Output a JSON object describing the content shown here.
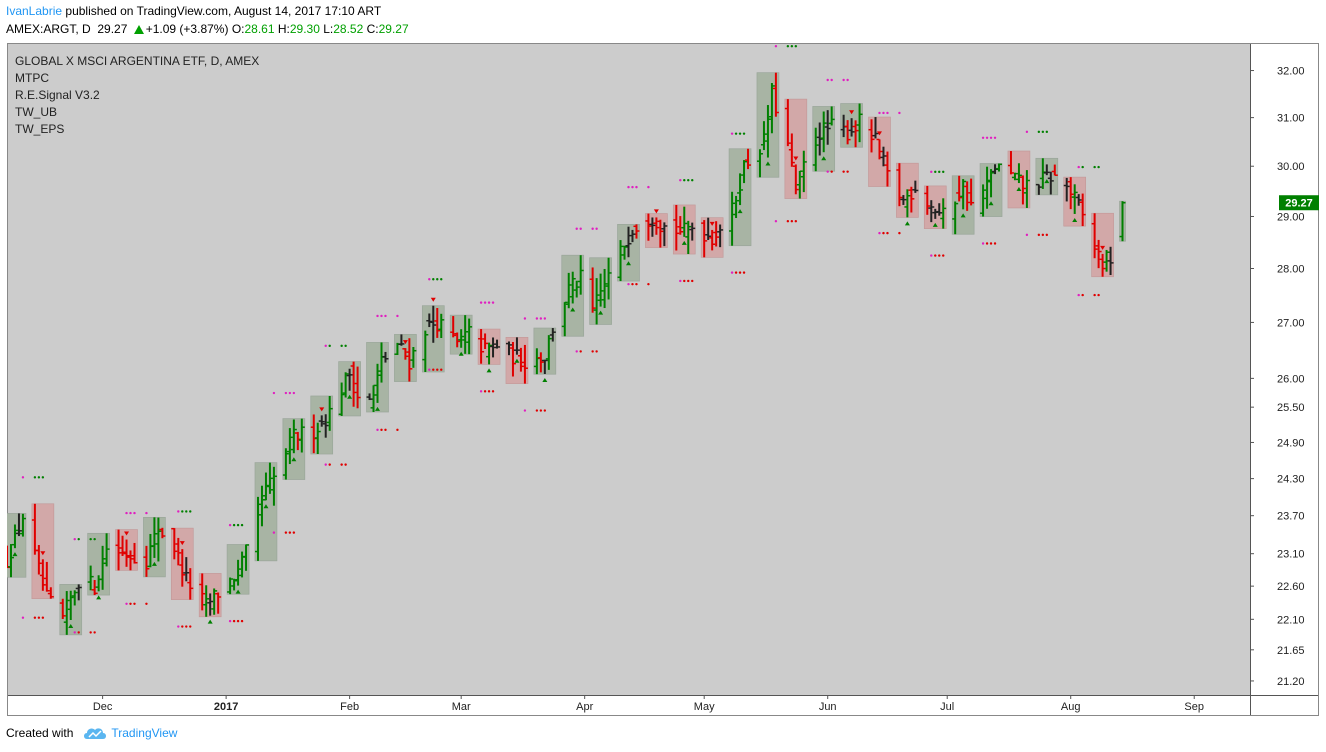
{
  "header": {
    "author": "IvanLabrie",
    "published_text": "published on TradingView.com, August 14, 2017 17:10 ART",
    "symbol": "AMEX:ARGT, D",
    "last": "29.27",
    "change": "+1.09 (+3.87%)",
    "o_label": "O:",
    "o_value": "28.61",
    "h_label": "H:",
    "h_value": "29.30",
    "l_label": "L:",
    "l_value": "28.52",
    "c_label": "C:",
    "c_value": "29.27"
  },
  "indicators": [
    "GLOBAL X MSCI ARGENTINA ETF, D, AMEX",
    "MTPC",
    "R.E.Signal V3.2",
    "TW_UB",
    "TW_EPS"
  ],
  "price_label": "29.27",
  "footer": {
    "created_with": "Created with",
    "brand": "TradingView",
    "logo_icon": "cloud-logo-icon"
  },
  "colors": {
    "up": "#008000",
    "down": "#e00000",
    "neutral": "#222222",
    "magenta": "#e020c0",
    "plot_bg": "#cccccc",
    "up_box": "#a8b4a4",
    "down_box": "#d2a8a8",
    "price_tag": "#008000"
  },
  "chart_data": {
    "type": "ohlc",
    "scale": "log",
    "ylim": [
      21.0,
      32.6
    ],
    "y_ticks": [
      "32.00",
      "31.00",
      "30.00",
      "29.00",
      "28.00",
      "27.00",
      "26.00",
      "25.50",
      "24.90",
      "24.30",
      "23.70",
      "23.10",
      "22.60",
      "22.10",
      "21.65",
      "21.20"
    ],
    "x_ticks": [
      {
        "label": "Dec",
        "date": "2016-12-01"
      },
      {
        "label": "2017",
        "date": "2017-01-01"
      },
      {
        "label": "Feb",
        "date": "2017-02-01"
      },
      {
        "label": "Mar",
        "date": "2017-03-01"
      },
      {
        "label": "Apr",
        "date": "2017-04-01"
      },
      {
        "label": "May",
        "date": "2017-05-01"
      },
      {
        "label": "Jun",
        "date": "2017-06-01"
      },
      {
        "label": "Jul",
        "date": "2017-07-01"
      },
      {
        "label": "Aug",
        "date": "2017-08-01"
      },
      {
        "label": "Sep",
        "date": "2017-09-01"
      }
    ],
    "x_range": [
      "2016-11-07",
      "2017-09-15"
    ],
    "price_path": [
      [
        "2016-11-07",
        23.0
      ],
      [
        "2016-11-11",
        23.7
      ],
      [
        "2016-11-17",
        22.4
      ],
      [
        "2016-11-21",
        22.1
      ],
      [
        "2016-11-25",
        22.7
      ],
      [
        "2016-11-29",
        22.6
      ],
      [
        "2016-12-02",
        23.2
      ],
      [
        "2016-12-07",
        23.1
      ],
      [
        "2016-12-12",
        23.0
      ],
      [
        "2016-12-15",
        23.5
      ],
      [
        "2016-12-19",
        23.2
      ],
      [
        "2016-12-22",
        22.7
      ],
      [
        "2016-12-27",
        22.3
      ],
      [
        "2016-12-30",
        22.5
      ],
      [
        "2017-01-04",
        22.8
      ],
      [
        "2017-01-06",
        23.1
      ],
      [
        "2017-01-10",
        24.0
      ],
      [
        "2017-01-13",
        24.3
      ],
      [
        "2017-01-18",
        25.0
      ],
      [
        "2017-01-23",
        25.1
      ],
      [
        "2017-01-27",
        25.4
      ],
      [
        "2017-02-01",
        26.1
      ],
      [
        "2017-02-03",
        25.7
      ],
      [
        "2017-02-06",
        25.6
      ],
      [
        "2017-02-09",
        26.3
      ],
      [
        "2017-02-13",
        26.6
      ],
      [
        "2017-02-16",
        26.3
      ],
      [
        "2017-02-20",
        26.9
      ],
      [
        "2017-02-23",
        27.0
      ],
      [
        "2017-02-28",
        26.6
      ],
      [
        "2017-03-03",
        26.8
      ],
      [
        "2017-03-07",
        26.5
      ],
      [
        "2017-03-10",
        26.6
      ],
      [
        "2017-03-14",
        26.4
      ],
      [
        "2017-03-17",
        26.3
      ],
      [
        "2017-03-22",
        26.4
      ],
      [
        "2017-03-24",
        26.9
      ],
      [
        "2017-03-28",
        27.6
      ],
      [
        "2017-03-31",
        27.8
      ],
      [
        "2017-04-03",
        27.2
      ],
      [
        "2017-04-06",
        27.7
      ],
      [
        "2017-04-10",
        28.3
      ],
      [
        "2017-04-13",
        28.8
      ],
      [
        "2017-04-18",
        29.0
      ],
      [
        "2017-04-21",
        28.8
      ],
      [
        "2017-04-26",
        28.7
      ],
      [
        "2017-04-28",
        28.8
      ],
      [
        "2017-05-03",
        28.6
      ],
      [
        "2017-05-05",
        28.8
      ],
      [
        "2017-05-08",
        29.1
      ],
      [
        "2017-05-11",
        30.0
      ],
      [
        "2017-05-16",
        30.5
      ],
      [
        "2017-05-18",
        31.5
      ],
      [
        "2017-05-22",
        30.4
      ],
      [
        "2017-05-24",
        29.5
      ],
      [
        "2017-05-26",
        30.0
      ],
      [
        "2017-05-30",
        30.7
      ],
      [
        "2017-06-02",
        30.8
      ],
      [
        "2017-06-06",
        30.7
      ],
      [
        "2017-06-09",
        30.9
      ],
      [
        "2017-06-13",
        30.5
      ],
      [
        "2017-06-16",
        29.8
      ],
      [
        "2017-06-20",
        29.3
      ],
      [
        "2017-06-23",
        29.6
      ],
      [
        "2017-06-27",
        29.2
      ],
      [
        "2017-06-30",
        29.0
      ],
      [
        "2017-07-05",
        29.6
      ],
      [
        "2017-07-07",
        29.2
      ],
      [
        "2017-07-11",
        29.6
      ],
      [
        "2017-07-13",
        30.0
      ],
      [
        "2017-07-17",
        29.8
      ],
      [
        "2017-07-20",
        29.6
      ],
      [
        "2017-07-24",
        29.7
      ],
      [
        "2017-07-27",
        29.8
      ],
      [
        "2017-07-31",
        29.6
      ],
      [
        "2017-08-03",
        29.2
      ],
      [
        "2017-08-07",
        28.4
      ],
      [
        "2017-08-09",
        28.1
      ],
      [
        "2017-08-11",
        28.2
      ],
      [
        "2017-08-14",
        29.27
      ]
    ],
    "last_price": 29.27
  }
}
